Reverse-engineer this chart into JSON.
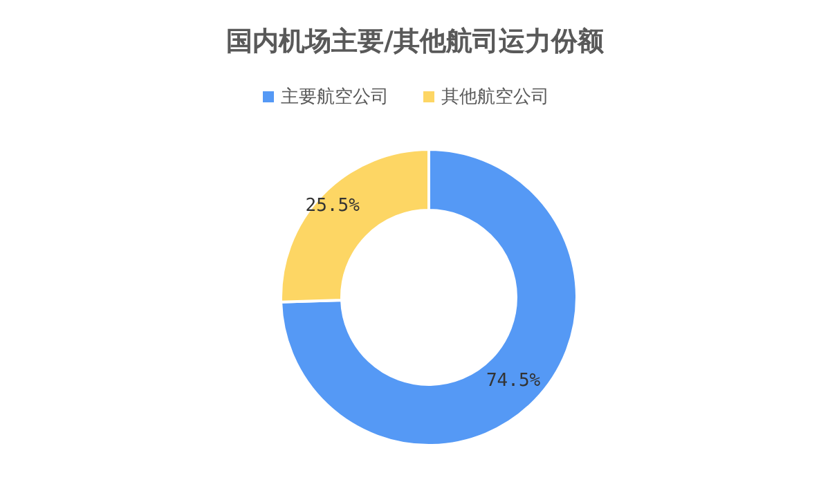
{
  "chart_data": {
    "type": "donut",
    "title": "国内机场主要/其他航司运力份额",
    "categories": [
      "主要航空公司",
      "其他航空公司"
    ],
    "values": [
      74.5,
      25.5
    ],
    "colors": [
      "#5599f5",
      "#fdd664"
    ],
    "legend": "top",
    "value_labels": [
      "74.5%",
      "25.5%"
    ]
  }
}
